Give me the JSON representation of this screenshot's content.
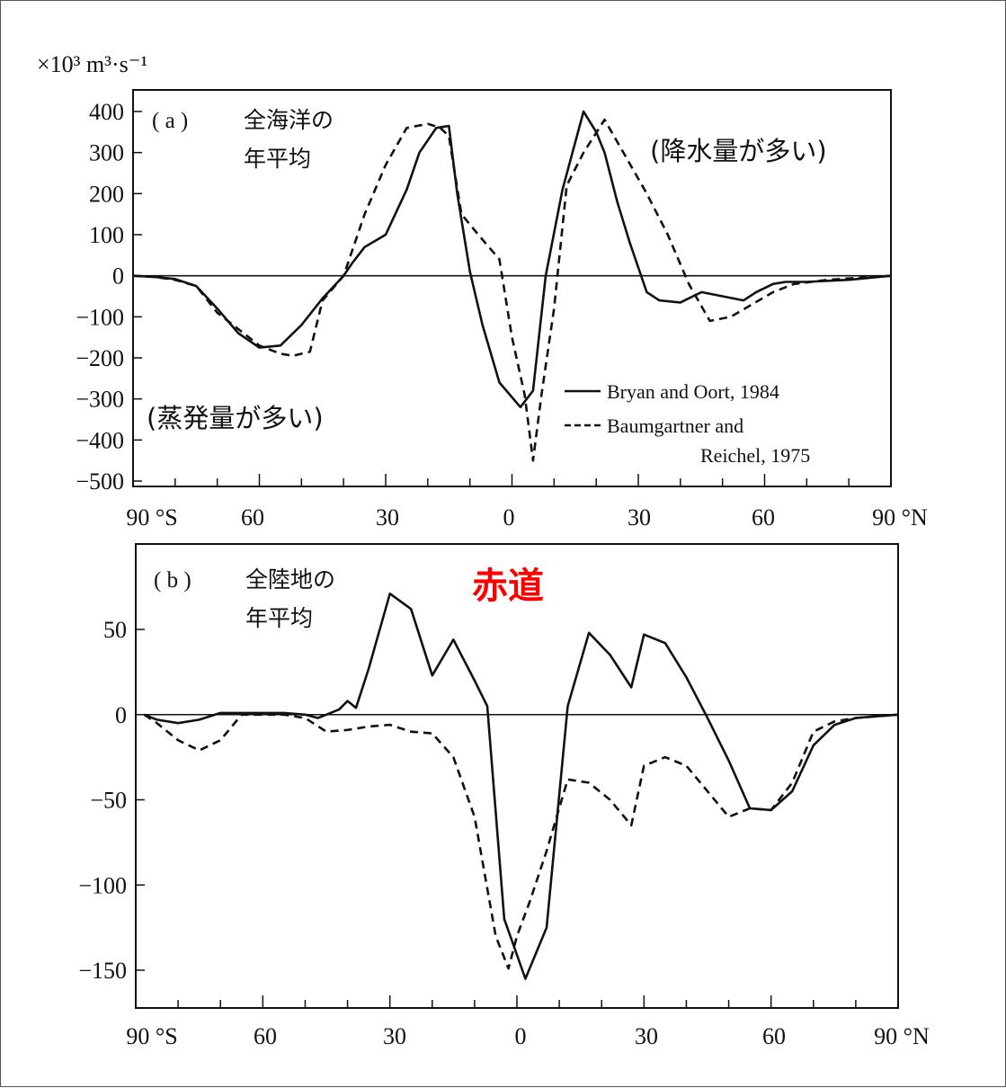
{
  "chart_data": [
    {
      "type": "line",
      "panel_label": "( a )",
      "title_line1": "全海洋の",
      "title_line2": "年平均",
      "unit": "×10³ m³·s⁻¹",
      "xlim": [
        -90,
        90
      ],
      "ylim": [
        -500,
        400
      ],
      "yticks": [
        "400",
        "300",
        "200",
        "100",
        "0",
        "−100",
        "−200",
        "−300",
        "−400",
        "−500"
      ],
      "ytick_values": [
        400,
        300,
        200,
        100,
        0,
        -100,
        -200,
        -300,
        -400,
        -500
      ],
      "xticks": [
        "90 °S",
        "60",
        "30",
        "0",
        "30",
        "60",
        "90 °N"
      ],
      "xtick_values": [
        -90,
        -60,
        -30,
        0,
        30,
        60,
        90
      ],
      "annotation_top_right": "(降水量が多い)",
      "annotation_bottom_left": "(蒸発量が多い)",
      "legend": [
        "Bryan and Oort, 1984",
        "Baumgartner and",
        "Reichel, 1975"
      ],
      "series": [
        {
          "name": "Bryan and Oort, 1984",
          "style": "solid",
          "x": [
            -90,
            -85,
            -80,
            -75,
            -70,
            -65,
            -60,
            -55,
            -50,
            -45,
            -40,
            -38,
            -35,
            -30,
            -25,
            -22,
            -18,
            -15,
            -13,
            -10,
            -7,
            -3,
            2,
            5,
            8,
            12,
            17,
            20,
            22,
            25,
            28,
            30,
            32,
            35,
            40,
            45,
            50,
            55,
            58,
            62,
            65,
            70,
            80,
            90
          ],
          "y": [
            0,
            -3,
            -8,
            -25,
            -80,
            -140,
            -175,
            -170,
            -120,
            -55,
            0,
            30,
            70,
            100,
            210,
            300,
            360,
            365,
            200,
            10,
            -120,
            -260,
            -320,
            -280,
            0,
            210,
            400,
            350,
            300,
            180,
            80,
            20,
            -40,
            -60,
            -65,
            -40,
            -50,
            -60,
            -40,
            -20,
            -15,
            -15,
            -10,
            0
          ]
        },
        {
          "name": "Baumgartner and Reichel, 1975",
          "style": "dashed",
          "x": [
            -90,
            -85,
            -80,
            -75,
            -70,
            -65,
            -60,
            -55,
            -52,
            -48,
            -45,
            -40,
            -35,
            -30,
            -25,
            -20,
            -17,
            -15,
            -12,
            -8,
            -3,
            0,
            3,
            5,
            7,
            10,
            13,
            17,
            22,
            27,
            32,
            37,
            42,
            47,
            52,
            57,
            62,
            67,
            75,
            90
          ],
          "y": [
            0,
            -3,
            -10,
            -25,
            -90,
            -130,
            -170,
            -190,
            -195,
            -185,
            -60,
            0,
            150,
            270,
            360,
            370,
            360,
            340,
            150,
            100,
            40,
            -150,
            -290,
            -450,
            -290,
            -80,
            220,
            300,
            380,
            290,
            200,
            100,
            -20,
            -110,
            -100,
            -70,
            -40,
            -20,
            -10,
            0
          ]
        }
      ]
    },
    {
      "type": "line",
      "panel_label": "( b )",
      "title_line1": "全陸地の",
      "title_line2": "年平均",
      "red_label": "赤道",
      "xlim": [
        -90,
        90
      ],
      "ylim": [
        -160,
        90
      ],
      "yticks": [
        "50",
        "0",
        "−50",
        "−100",
        "−150"
      ],
      "ytick_values": [
        50,
        0,
        -50,
        -100,
        -150
      ],
      "xticks": [
        "90 °S",
        "60",
        "30",
        "0",
        "30",
        "60",
        "90 °N"
      ],
      "xtick_values": [
        -90,
        -60,
        -30,
        0,
        30,
        60,
        90
      ],
      "series": [
        {
          "name": "Bryan and Oort, 1984",
          "style": "solid",
          "x": [
            -88,
            -85,
            -80,
            -75,
            -70,
            -65,
            -60,
            -55,
            -50,
            -47,
            -45,
            -42,
            -40,
            -38,
            -35,
            -30,
            -25,
            -20,
            -15,
            -10,
            -7,
            -3,
            2,
            7,
            12,
            17,
            22,
            27,
            30,
            35,
            40,
            45,
            50,
            55,
            60,
            65,
            70,
            75,
            80,
            85,
            90
          ],
          "y": [
            0,
            -3,
            -5,
            -3,
            1,
            1,
            1,
            1,
            0,
            -2,
            0,
            3,
            8,
            4,
            27,
            71,
            62,
            23,
            44,
            20,
            5,
            -120,
            -155,
            -125,
            5,
            48,
            35,
            16,
            47,
            42,
            22,
            -2,
            -27,
            -55,
            -56,
            -45,
            -18,
            -6,
            -2,
            -1,
            0
          ]
        },
        {
          "name": "Baumgartner and Reichel, 1975",
          "style": "dashed",
          "x": [
            -88,
            -85,
            -80,
            -75,
            -70,
            -65,
            -60,
            -55,
            -50,
            -45,
            -40,
            -35,
            -30,
            -25,
            -20,
            -15,
            -10,
            -5,
            -2,
            0,
            3,
            7,
            12,
            17,
            22,
            27,
            30,
            35,
            40,
            45,
            50,
            55,
            60,
            65,
            70,
            75,
            80,
            85,
            90
          ],
          "y": [
            0,
            -5,
            -15,
            -21,
            -15,
            0,
            0,
            0,
            -2,
            -10,
            -9,
            -7,
            -6,
            -10,
            -11,
            -25,
            -60,
            -130,
            -149,
            -130,
            -110,
            -80,
            -38,
            -40,
            -50,
            -65,
            -30,
            -25,
            -30,
            -45,
            -60,
            -55,
            -56,
            -40,
            -10,
            -4,
            -2,
            -1,
            0
          ]
        }
      ]
    }
  ]
}
